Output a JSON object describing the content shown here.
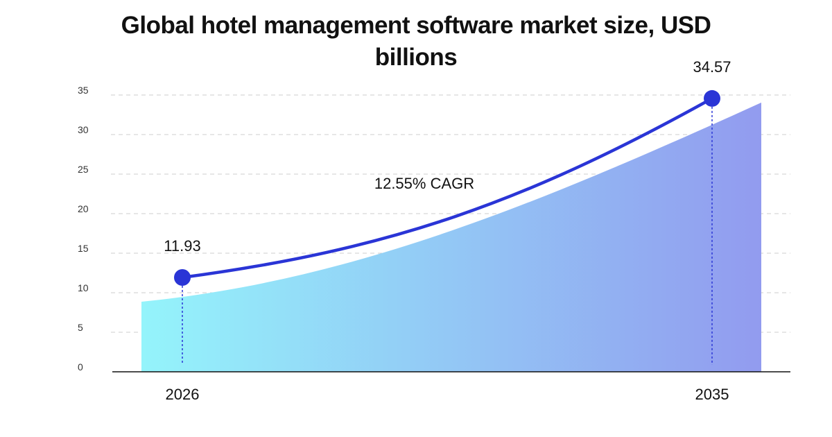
{
  "chart_data": {
    "type": "line",
    "title": "Global hotel management software market size, USD billions",
    "x": [
      "2026",
      "2035"
    ],
    "series": [
      {
        "values": [
          11.93,
          34.57
        ]
      }
    ],
    "data_labels": [
      "11.93",
      "34.57"
    ],
    "annotation": "12.55% CAGR",
    "yticks": [
      0,
      5,
      10,
      15,
      20,
      25,
      30,
      35
    ],
    "ylim": [
      0,
      35
    ],
    "grid": true,
    "legend": "none",
    "colors": {
      "line": "#2a35d6",
      "area_start": "#94f4fb",
      "area_end": "#929bef",
      "grid": "#cccccc"
    }
  }
}
